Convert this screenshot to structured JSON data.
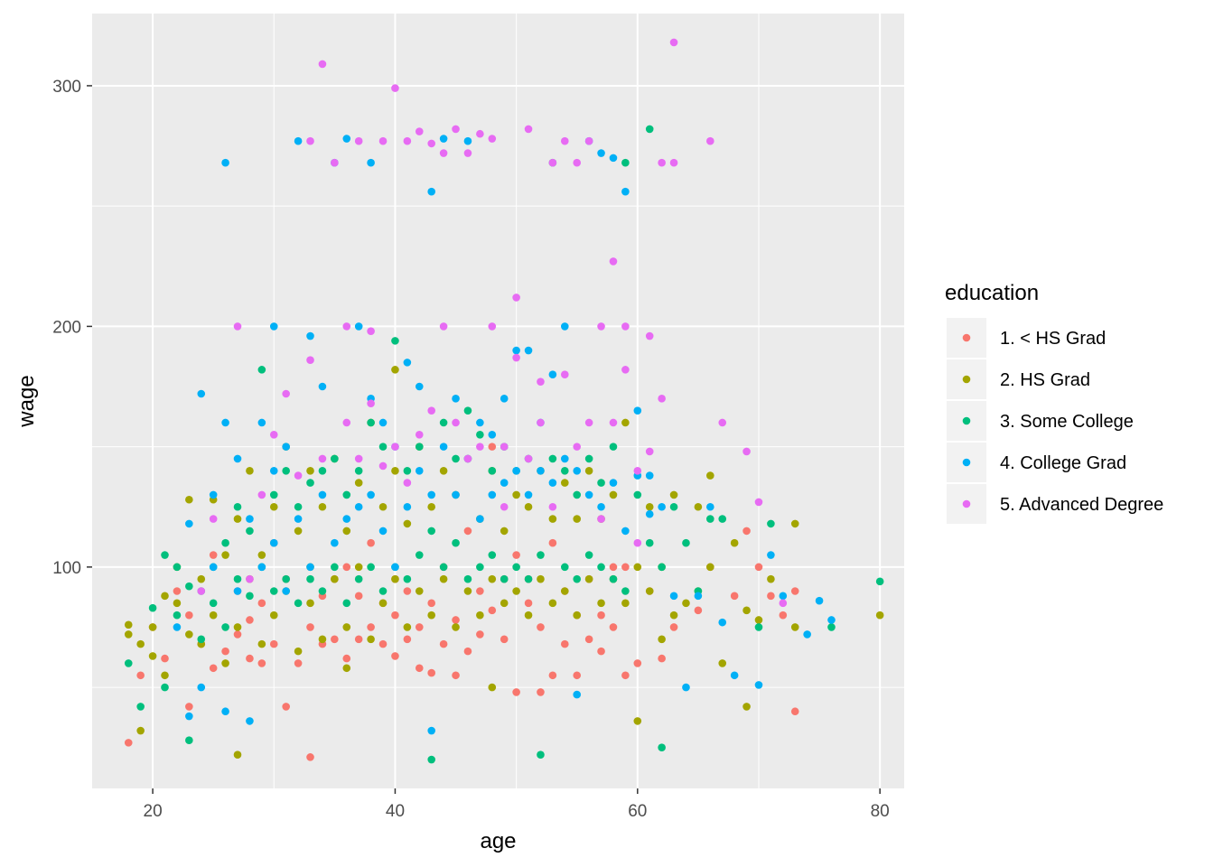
{
  "chart_data": {
    "type": "scatter",
    "title": "",
    "xlabel": "age",
    "ylabel": "wage",
    "xlim": [
      15,
      82
    ],
    "ylim": [
      8,
      330
    ],
    "x_ticks": [
      20,
      40,
      60,
      80
    ],
    "y_ticks": [
      100,
      200,
      300
    ],
    "x_tick_labels": [
      "20",
      "40",
      "60",
      "80"
    ],
    "y_tick_labels": [
      "100",
      "200",
      "300"
    ],
    "grid": true,
    "legend": {
      "title": "education",
      "position": "right"
    },
    "series": [
      {
        "name": "1. < HS Grad",
        "color": "#F8766D",
        "x": [
          18,
          19,
          20,
          21,
          22,
          23,
          23,
          24,
          25,
          25,
          26,
          27,
          27,
          28,
          28,
          29,
          29,
          30,
          30,
          31,
          31,
          32,
          33,
          33,
          34,
          34,
          35,
          35,
          36,
          36,
          37,
          37,
          38,
          38,
          39,
          39,
          40,
          40,
          40,
          41,
          41,
          42,
          42,
          43,
          43,
          44,
          44,
          45,
          45,
          46,
          46,
          47,
          47,
          48,
          48,
          49,
          49,
          50,
          50,
          51,
          51,
          52,
          52,
          53,
          53,
          54,
          54,
          55,
          55,
          56,
          56,
          57,
          57,
          58,
          58,
          59,
          59,
          60,
          61,
          62,
          63,
          65,
          66,
          68,
          69,
          70,
          71,
          72,
          73,
          73
        ],
        "y": [
          27,
          55,
          75,
          62,
          90,
          42,
          80,
          68,
          105,
          58,
          65,
          90,
          72,
          78,
          62,
          85,
          60,
          110,
          68,
          42,
          95,
          60,
          21,
          75,
          88,
          68,
          70,
          95,
          62,
          100,
          88,
          70,
          110,
          75,
          85,
          68,
          80,
          63,
          95,
          90,
          70,
          75,
          58,
          85,
          56,
          68,
          100,
          78,
          55,
          65,
          115,
          72,
          90,
          150,
          82,
          95,
          70,
          105,
          48,
          85,
          95,
          75,
          48,
          110,
          55,
          90,
          68,
          80,
          55,
          95,
          70,
          80,
          65,
          100,
          75,
          55,
          100,
          60,
          90,
          62,
          75,
          82,
          100,
          88,
          115,
          100,
          88,
          80,
          90,
          40
        ]
      },
      {
        "name": "2. HS Grad",
        "color": "#A3A500",
        "x": [
          18,
          18,
          19,
          19,
          20,
          20,
          21,
          21,
          22,
          22,
          23,
          23,
          24,
          24,
          25,
          25,
          26,
          26,
          27,
          27,
          27,
          28,
          28,
          29,
          29,
          30,
          30,
          31,
          31,
          32,
          32,
          33,
          33,
          33,
          34,
          34,
          35,
          35,
          36,
          36,
          36,
          37,
          37,
          38,
          38,
          39,
          39,
          40,
          40,
          40,
          41,
          41,
          42,
          42,
          43,
          43,
          44,
          44,
          45,
          45,
          46,
          46,
          47,
          47,
          48,
          48,
          48,
          49,
          49,
          50,
          50,
          51,
          51,
          52,
          52,
          53,
          53,
          54,
          54,
          55,
          55,
          56,
          56,
          57,
          57,
          58,
          58,
          59,
          59,
          60,
          60,
          61,
          61,
          62,
          62,
          63,
          63,
          64,
          65,
          65,
          66,
          66,
          67,
          68,
          69,
          69,
          70,
          71,
          73,
          73,
          80
        ],
        "y": [
          72,
          76,
          68,
          32,
          63,
          75,
          55,
          88,
          85,
          100,
          72,
          128,
          68,
          95,
          80,
          128,
          105,
          60,
          75,
          120,
          22,
          95,
          140,
          68,
          105,
          80,
          125,
          90,
          150,
          65,
          115,
          85,
          140,
          100,
          70,
          125,
          95,
          145,
          75,
          115,
          58,
          100,
          135,
          70,
          160,
          85,
          125,
          95,
          140,
          182,
          75,
          118,
          90,
          150,
          80,
          125,
          95,
          140,
          75,
          130,
          90,
          145,
          80,
          120,
          95,
          140,
          50,
          85,
          115,
          90,
          130,
          80,
          125,
          95,
          140,
          85,
          120,
          90,
          135,
          80,
          120,
          95,
          140,
          85,
          120,
          95,
          130,
          85,
          160,
          100,
          36,
          90,
          125,
          100,
          70,
          80,
          130,
          85,
          125,
          90,
          138,
          100,
          60,
          110,
          82,
          42,
          78,
          95,
          75,
          118,
          80
        ]
      },
      {
        "name": "3. Some College",
        "color": "#00BF7D",
        "x": [
          18,
          19,
          20,
          21,
          21,
          22,
          22,
          23,
          23,
          24,
          24,
          25,
          25,
          26,
          26,
          27,
          27,
          28,
          28,
          29,
          29,
          30,
          30,
          31,
          31,
          32,
          32,
          33,
          33,
          34,
          34,
          35,
          35,
          36,
          36,
          37,
          37,
          38,
          38,
          39,
          39,
          40,
          40,
          41,
          41,
          42,
          42,
          43,
          43,
          44,
          44,
          45,
          45,
          46,
          46,
          47,
          47,
          48,
          48,
          49,
          49,
          50,
          50,
          51,
          51,
          52,
          52,
          53,
          53,
          54,
          54,
          55,
          55,
          56,
          56,
          57,
          57,
          58,
          58,
          59,
          59,
          60,
          61,
          61,
          62,
          62,
          63,
          64,
          65,
          66,
          67,
          70,
          71,
          76,
          80
        ],
        "y": [
          60,
          42,
          83,
          105,
          50,
          80,
          100,
          92,
          28,
          90,
          70,
          100,
          85,
          75,
          110,
          95,
          125,
          88,
          115,
          100,
          182,
          90,
          130,
          95,
          140,
          85,
          125,
          95,
          135,
          90,
          140,
          100,
          145,
          85,
          130,
          95,
          140,
          100,
          160,
          90,
          150,
          100,
          194,
          95,
          140,
          105,
          150,
          20,
          115,
          100,
          160,
          110,
          145,
          95,
          165,
          100,
          155,
          105,
          140,
          95,
          150,
          100,
          140,
          95,
          145,
          22,
          105,
          145,
          268,
          100,
          140,
          95,
          130,
          105,
          145,
          100,
          135,
          95,
          150,
          90,
          268,
          130,
          110,
          282,
          100,
          25,
          125,
          110,
          90,
          120,
          120,
          75,
          118,
          75,
          94
        ]
      },
      {
        "name": "4. College Grad",
        "color": "#00B0F6",
        "x": [
          22,
          23,
          23,
          24,
          24,
          25,
          25,
          26,
          26,
          26,
          27,
          27,
          28,
          28,
          29,
          29,
          30,
          30,
          30,
          31,
          31,
          32,
          32,
          33,
          33,
          34,
          34,
          35,
          35,
          36,
          36,
          37,
          37,
          38,
          38,
          38,
          39,
          39,
          40,
          40,
          41,
          41,
          42,
          42,
          43,
          43,
          43,
          44,
          44,
          45,
          45,
          46,
          46,
          47,
          47,
          48,
          48,
          49,
          49,
          50,
          50,
          51,
          51,
          52,
          52,
          53,
          53,
          54,
          54,
          55,
          55,
          56,
          56,
          57,
          57,
          58,
          58,
          59,
          59,
          60,
          60,
          61,
          61,
          62,
          63,
          64,
          65,
          66,
          67,
          68,
          70,
          71,
          72,
          74,
          75,
          76
        ],
        "y": [
          75,
          38,
          118,
          50,
          172,
          100,
          130,
          160,
          268,
          40,
          90,
          145,
          120,
          36,
          100,
          160,
          110,
          140,
          200,
          90,
          150,
          120,
          277,
          100,
          196,
          130,
          175,
          110,
          268,
          120,
          278,
          125,
          200,
          130,
          170,
          268,
          115,
          160,
          100,
          150,
          125,
          185,
          140,
          175,
          256,
          32,
          130,
          150,
          278,
          130,
          170,
          145,
          277,
          120,
          160,
          130,
          155,
          135,
          170,
          140,
          190,
          130,
          190,
          140,
          160,
          135,
          180,
          145,
          200,
          140,
          47,
          130,
          277,
          125,
          272,
          135,
          270,
          256,
          115,
          165,
          138,
          122,
          138,
          125,
          88,
          50,
          88,
          125,
          77,
          55,
          51,
          105,
          88,
          72,
          86,
          78
        ]
      },
      {
        "name": "5. Advanced Degree",
        "color": "#E76BF3",
        "x": [
          24,
          25,
          27,
          28,
          29,
          30,
          31,
          32,
          33,
          33,
          34,
          34,
          35,
          36,
          36,
          37,
          37,
          38,
          38,
          39,
          39,
          40,
          40,
          41,
          41,
          42,
          42,
          43,
          43,
          44,
          44,
          45,
          45,
          46,
          46,
          47,
          47,
          48,
          48,
          49,
          49,
          50,
          50,
          51,
          51,
          52,
          52,
          53,
          53,
          54,
          54,
          55,
          55,
          56,
          56,
          57,
          57,
          58,
          58,
          59,
          59,
          60,
          60,
          61,
          61,
          62,
          62,
          63,
          63,
          66,
          67,
          69,
          70,
          72
        ],
        "y": [
          90,
          120,
          200,
          95,
          130,
          155,
          172,
          138,
          277,
          186,
          309,
          145,
          268,
          200,
          160,
          277,
          145,
          198,
          168,
          277,
          142,
          299,
          150,
          277,
          135,
          281,
          155,
          276,
          165,
          272,
          200,
          282,
          160,
          272,
          145,
          280,
          150,
          278,
          200,
          125,
          150,
          187,
          212,
          282,
          145,
          177,
          160,
          268,
          125,
          180,
          277,
          268,
          150,
          277,
          160,
          200,
          120,
          227,
          160,
          200,
          182,
          140,
          110,
          196,
          148,
          268,
          170,
          268,
          318,
          277,
          160,
          148,
          127,
          85
        ]
      }
    ]
  }
}
